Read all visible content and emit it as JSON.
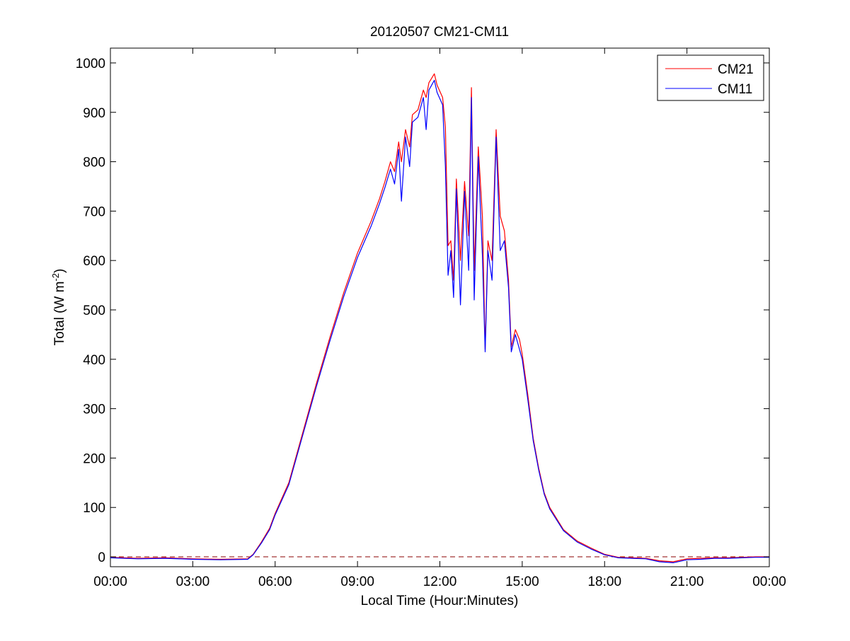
{
  "chart_data": {
    "type": "line",
    "title": "20120507 CM21-CM11",
    "xlabel": "Local Time (Hour:Minutes)",
    "ylabel_main": "Total (W m",
    "ylabel_sup": "-2",
    "ylabel_close": ")",
    "xlim": [
      0,
      24
    ],
    "ylim": [
      -20,
      1030
    ],
    "x_ticks": [
      0,
      3,
      6,
      9,
      12,
      15,
      18,
      21,
      24
    ],
    "x_tick_labels": [
      "00:00",
      "03:00",
      "06:00",
      "09:00",
      "12:00",
      "15:00",
      "18:00",
      "21:00",
      "00:00"
    ],
    "y_ticks": [
      0,
      100,
      200,
      300,
      400,
      500,
      600,
      700,
      800,
      900,
      1000
    ],
    "y_tick_labels": [
      "0",
      "100",
      "200",
      "300",
      "400",
      "500",
      "600",
      "700",
      "800",
      "900",
      "1000"
    ],
    "grid": false,
    "legend_position": "top-right",
    "zero_reference_line": {
      "value": 0,
      "color": "#8b0000",
      "style": "dashed"
    },
    "series": [
      {
        "name": "CM21",
        "color": "#ff0000",
        "x": [
          0,
          1,
          2,
          3,
          4,
          5,
          5.2,
          5.5,
          5.8,
          6,
          6.5,
          7,
          7.5,
          8,
          8.5,
          9,
          9.5,
          9.8,
          10,
          10.2,
          10.35,
          10.5,
          10.6,
          10.75,
          10.9,
          11,
          11.2,
          11.4,
          11.5,
          11.6,
          11.8,
          11.9,
          12.1,
          12.2,
          12.3,
          12.4,
          12.5,
          12.6,
          12.75,
          12.9,
          13.05,
          13.15,
          13.25,
          13.4,
          13.55,
          13.65,
          13.75,
          13.9,
          14.05,
          14.2,
          14.35,
          14.5,
          14.6,
          14.75,
          14.9,
          15,
          15.2,
          15.4,
          15.6,
          15.8,
          16,
          16.5,
          17,
          17.5,
          18,
          18.5,
          19,
          19.5,
          20,
          20.5,
          21,
          21.5,
          22,
          22.5,
          23,
          23.5,
          24
        ],
        "y": [
          -1,
          -3,
          -2,
          -4,
          -5,
          -4,
          5,
          30,
          58,
          88,
          150,
          250,
          350,
          445,
          535,
          615,
          680,
          725,
          760,
          800,
          780,
          840,
          800,
          865,
          830,
          895,
          905,
          945,
          930,
          960,
          978,
          955,
          930,
          870,
          630,
          640,
          560,
          765,
          600,
          760,
          650,
          950,
          580,
          830,
          690,
          420,
          640,
          600,
          865,
          690,
          660,
          560,
          425,
          460,
          440,
          410,
          330,
          240,
          180,
          130,
          100,
          55,
          32,
          18,
          5,
          -1,
          -2,
          -3,
          -8,
          -10,
          -4,
          -3,
          -2,
          -2,
          -1,
          0,
          0
        ]
      },
      {
        "name": "CM11",
        "color": "#0000ff",
        "x": [
          0,
          1,
          2,
          3,
          4,
          5,
          5.2,
          5.5,
          5.8,
          6,
          6.5,
          7,
          7.5,
          8,
          8.5,
          9,
          9.5,
          9.8,
          10,
          10.2,
          10.35,
          10.5,
          10.6,
          10.75,
          10.9,
          11,
          11.2,
          11.4,
          11.5,
          11.6,
          11.8,
          11.9,
          12.1,
          12.2,
          12.3,
          12.4,
          12.5,
          12.6,
          12.75,
          12.9,
          13.05,
          13.15,
          13.25,
          13.4,
          13.55,
          13.65,
          13.75,
          13.9,
          14.05,
          14.2,
          14.35,
          14.5,
          14.6,
          14.75,
          14.9,
          15,
          15.2,
          15.4,
          15.6,
          15.8,
          16,
          16.5,
          17,
          17.5,
          18,
          18.5,
          19,
          19.5,
          20,
          20.5,
          21,
          21.5,
          22,
          22.5,
          23,
          23.5,
          24
        ],
        "y": [
          -2,
          -4,
          -3,
          -5,
          -6,
          -5,
          4,
          28,
          55,
          85,
          146,
          245,
          344,
          438,
          527,
          606,
          670,
          715,
          748,
          785,
          755,
          825,
          720,
          850,
          790,
          880,
          890,
          930,
          865,
          945,
          965,
          940,
          915,
          790,
          570,
          620,
          525,
          745,
          510,
          740,
          580,
          930,
          520,
          810,
          610,
          415,
          620,
          560,
          850,
          620,
          640,
          545,
          415,
          450,
          420,
          400,
          320,
          235,
          176,
          127,
          97,
          53,
          30,
          16,
          4,
          -2,
          -3,
          -4,
          -10,
          -12,
          -6,
          -5,
          -3,
          -3,
          -2,
          -1,
          -1
        ]
      }
    ]
  }
}
